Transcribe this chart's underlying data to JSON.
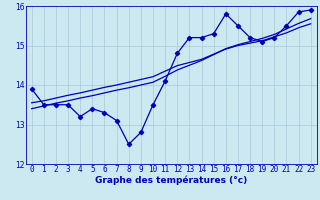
{
  "xlabel": "Graphe des températures (°c)",
  "hours": [
    0,
    1,
    2,
    3,
    4,
    5,
    6,
    7,
    8,
    9,
    10,
    11,
    12,
    13,
    14,
    15,
    16,
    17,
    18,
    19,
    20,
    21,
    22,
    23
  ],
  "temps": [
    13.9,
    13.5,
    13.5,
    13.5,
    13.2,
    13.4,
    13.3,
    13.1,
    12.5,
    12.8,
    13.5,
    14.1,
    14.8,
    15.2,
    15.2,
    15.3,
    15.8,
    15.5,
    15.2,
    15.1,
    15.2,
    15.5,
    15.85,
    15.9
  ],
  "trend1": [
    13.55,
    13.6,
    13.67,
    13.74,
    13.8,
    13.87,
    13.94,
    14.0,
    14.07,
    14.14,
    14.21,
    14.35,
    14.49,
    14.57,
    14.65,
    14.78,
    14.91,
    15.0,
    15.06,
    15.12,
    15.22,
    15.32,
    15.45,
    15.55
  ],
  "trend2": [
    13.4,
    13.47,
    13.54,
    13.6,
    13.67,
    13.73,
    13.8,
    13.87,
    13.93,
    14.0,
    14.07,
    14.22,
    14.38,
    14.5,
    14.62,
    14.77,
    14.92,
    15.02,
    15.1,
    15.18,
    15.28,
    15.42,
    15.56,
    15.68
  ],
  "ylim": [
    12,
    16
  ],
  "yticks": [
    12,
    13,
    14,
    15,
    16
  ],
  "bg_color": "#cce8f0",
  "grid_color": "#aac8d8",
  "line_color": "#0000bb",
  "marker": "D",
  "marker_size": 2.2,
  "line_width": 0.9,
  "tick_fontsize": 5.5,
  "xlabel_fontsize": 6.5
}
